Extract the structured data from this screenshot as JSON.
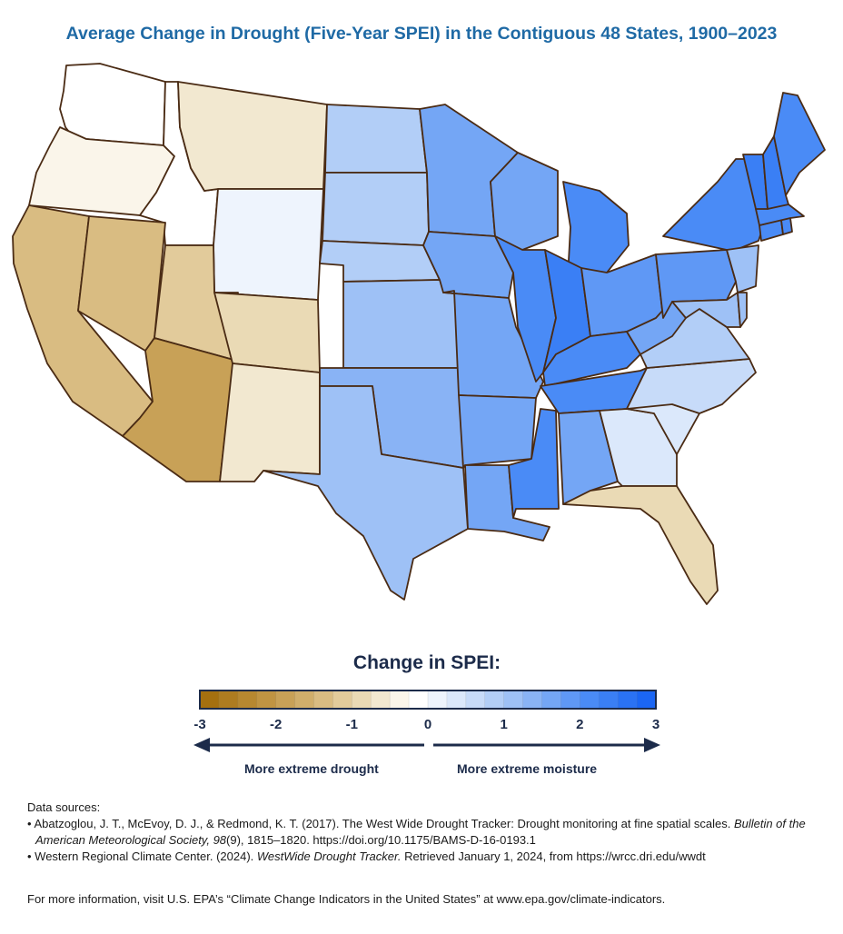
{
  "title": "Average Change in Drought (Five-Year SPEI) in the Contiguous 48 States, 1900–2023",
  "legend": {
    "title": "Change in SPEI:",
    "min": -3,
    "max": 3,
    "ticks": [
      "-3",
      "-2",
      "-1",
      "0",
      "1",
      "2",
      "3"
    ],
    "colors": [
      "#a5700f",
      "#ae7c20",
      "#b78830",
      "#c09442",
      "#c8a157",
      "#d0ae6b",
      "#d9bc82",
      "#e2cb9b",
      "#eadab5",
      "#f2e8d0",
      "#faf5ea",
      "#ffffff",
      "#eef4fd",
      "#dbe8fb",
      "#c7dbf9",
      "#b2cef7",
      "#9ec1f6",
      "#89b3f5",
      "#74a6f5",
      "#5f98f5",
      "#4a8bf6",
      "#3a7ff5",
      "#2a72f4",
      "#1b66f4"
    ],
    "left_arrow_label": "More extreme drought",
    "right_arrow_label": "More extreme moisture"
  },
  "map_regions": [
    {
      "name": "Washington",
      "value": -0.1
    },
    {
      "name": "Oregon",
      "value": -0.4
    },
    {
      "name": "California",
      "value": -1.5
    },
    {
      "name": "Idaho",
      "value": -0.2
    },
    {
      "name": "Nevada",
      "value": -1.4
    },
    {
      "name": "Montana",
      "value": -0.6
    },
    {
      "name": "Wyoming",
      "value": 0.1
    },
    {
      "name": "Utah",
      "value": -1.2
    },
    {
      "name": "Arizona",
      "value": -2.0
    },
    {
      "name": "Colorado",
      "value": -0.8
    },
    {
      "name": "New Mexico",
      "value": -0.7
    },
    {
      "name": "North Dakota",
      "value": 0.8
    },
    {
      "name": "South Dakota",
      "value": 0.9
    },
    {
      "name": "Nebraska",
      "value": 0.8
    },
    {
      "name": "Kansas",
      "value": 1.0
    },
    {
      "name": "Oklahoma",
      "value": 1.3
    },
    {
      "name": "Texas",
      "value": 1.0
    },
    {
      "name": "Minnesota",
      "value": 1.6
    },
    {
      "name": "Iowa",
      "value": 1.7
    },
    {
      "name": "Missouri",
      "value": 1.6
    },
    {
      "name": "Arkansas",
      "value": 1.7
    },
    {
      "name": "Louisiana",
      "value": 1.6
    },
    {
      "name": "Wisconsin",
      "value": 1.5
    },
    {
      "name": "Illinois",
      "value": 2.0
    },
    {
      "name": "Michigan",
      "value": 2.2
    },
    {
      "name": "Indiana",
      "value": 2.3
    },
    {
      "name": "Ohio",
      "value": 1.9
    },
    {
      "name": "Kentucky",
      "value": 2.0
    },
    {
      "name": "Tennessee",
      "value": 2.0
    },
    {
      "name": "Mississippi",
      "value": 2.0
    },
    {
      "name": "Alabama",
      "value": 1.5
    },
    {
      "name": "Georgia",
      "value": 0.4
    },
    {
      "name": "Florida",
      "value": -0.8
    },
    {
      "name": "South Carolina",
      "value": 0.3
    },
    {
      "name": "North Carolina",
      "value": 0.5
    },
    {
      "name": "Virginia",
      "value": 0.9
    },
    {
      "name": "West Virginia",
      "value": 1.7
    },
    {
      "name": "Pennsylvania",
      "value": 1.9
    },
    {
      "name": "New York",
      "value": 2.0
    },
    {
      "name": "New Jersey",
      "value": 1.1
    },
    {
      "name": "Maryland",
      "value": 1.2
    },
    {
      "name": "Delaware",
      "value": 1.0
    },
    {
      "name": "Connecticut",
      "value": 2.0
    },
    {
      "name": "Rhode Island",
      "value": 2.0
    },
    {
      "name": "Massachusetts",
      "value": 2.1
    },
    {
      "name": "Vermont",
      "value": 2.4
    },
    {
      "name": "New Hampshire",
      "value": 2.3
    },
    {
      "name": "Maine",
      "value": 2.2
    }
  ],
  "sources": {
    "heading": "Data sources:",
    "ref1_prefix": "• Abatzoglou, J. T., McEvoy, D. J., & Redmond, K. T. (2017). The West Wide Drought Tracker: Drought monitoring at fine spatial scales.",
    "ref1_journal": "Bulletin of the American Meteorological Society, 98",
    "ref1_suffix": "(9), 1815–1820. https://doi.org/10.1175/BAMS-D-16-0193.1",
    "ref2_prefix": "• Western Regional Climate Center. (2024).",
    "ref2_title": "WestWide Drought Tracker.",
    "ref2_suffix": " Retrieved January 1, 2024, from https://wrcc.dri.edu/wwdt"
  },
  "more_info": "For more information, visit U.S. EPA’s “Climate Change Indicators in the United States” at www.epa.gov/climate-indicators."
}
